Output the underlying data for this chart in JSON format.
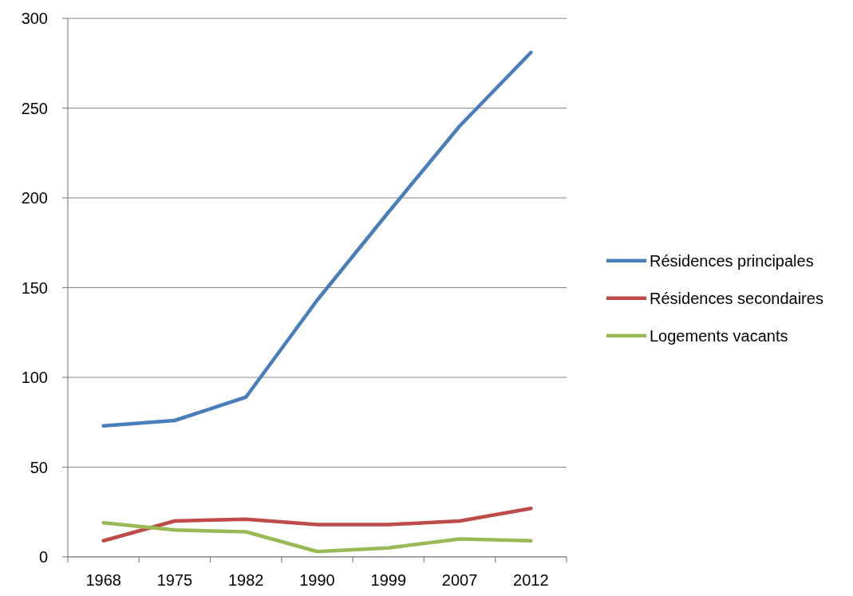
{
  "chart_data": {
    "type": "line",
    "categories": [
      "1968",
      "1975",
      "1982",
      "1990",
      "1999",
      "2007",
      "2012"
    ],
    "series": [
      {
        "name": "Résidences principales",
        "color": "#4a7ebb",
        "values": [
          73,
          76,
          89,
          143,
          192,
          240,
          281
        ]
      },
      {
        "name": "Résidences secondaires",
        "color": "#be4b48",
        "values": [
          9,
          20,
          21,
          18,
          18,
          20,
          27
        ]
      },
      {
        "name": "Logements vacants",
        "color": "#98b954",
        "values": [
          19,
          15,
          14,
          3,
          5,
          10,
          9
        ]
      }
    ],
    "ylim": [
      0,
      300
    ],
    "yticks": [
      0,
      50,
      100,
      150,
      200,
      250,
      300
    ],
    "grid": "y",
    "legend": "right",
    "marker": "none",
    "line_style": "solid"
  }
}
